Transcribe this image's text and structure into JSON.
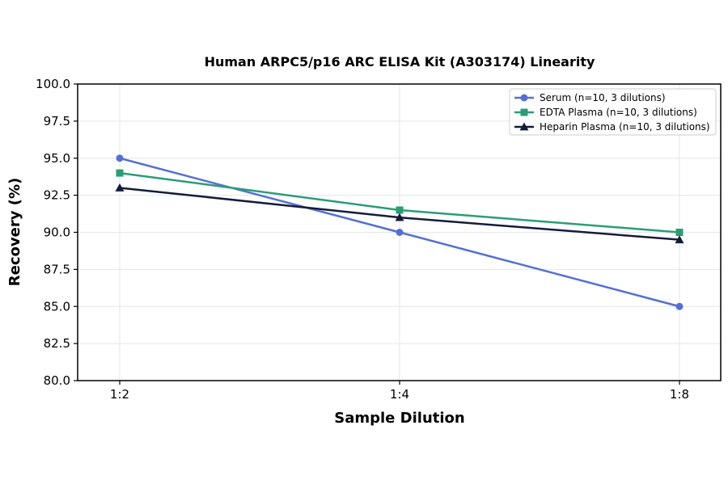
{
  "chart_data": {
    "type": "line",
    "title": "Human ARPC5/p16 ARC ELISA Kit (A303174) Linearity",
    "xlabel": "Sample Dilution",
    "ylabel": "Recovery (%)",
    "categories": [
      "1:2",
      "1:4",
      "1:8"
    ],
    "ylim": [
      80,
      100
    ],
    "yticks": [
      "80.0",
      "82.5",
      "85.0",
      "87.5",
      "90.0",
      "92.5",
      "95.0",
      "97.5",
      "100.0"
    ],
    "grid": true,
    "legend_position": "top-right",
    "series": [
      {
        "name": "Serum (n=10, 3 dilutions)",
        "values": [
          95,
          90,
          85
        ],
        "color": "#5470d6",
        "marker": "circle"
      },
      {
        "name": "EDTA Plasma (n=10, 3 dilutions)",
        "values": [
          94,
          91.5,
          90
        ],
        "color": "#2a9d76",
        "marker": "square"
      },
      {
        "name": "Heparin Plasma (n=10, 3 dilutions)",
        "values": [
          93,
          91,
          89.5
        ],
        "color": "#141c3a",
        "marker": "triangle"
      }
    ]
  }
}
